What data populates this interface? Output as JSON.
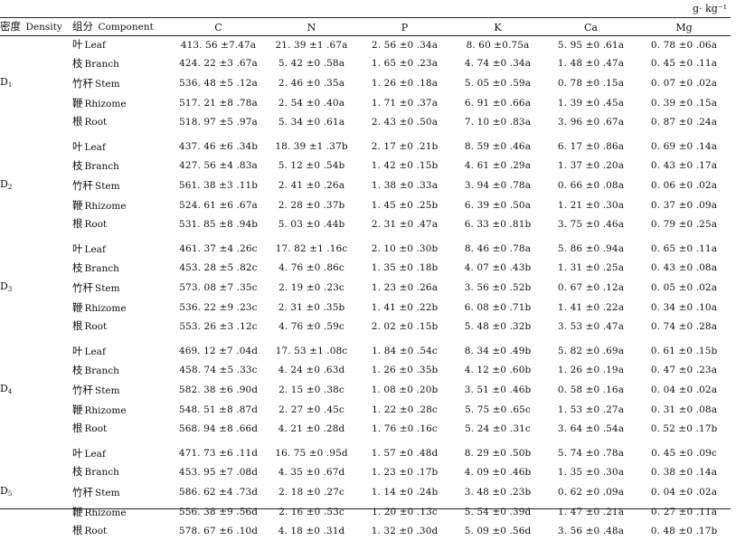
{
  "unit": "g· kg⁻¹",
  "header": {
    "density_cn": "密度",
    "density_en": "Density",
    "component_cn": "组分",
    "component_en": "Component",
    "columns": [
      "C",
      "N",
      "P",
      "K",
      "Ca",
      "Mg"
    ]
  },
  "groups": [
    {
      "label": "D1",
      "label_main": "D",
      "label_sub": "1",
      "rows": [
        {
          "cn": "叶",
          "en": "Leaf",
          "values": [
            "413. 56 ±7.47a",
            "21. 39 ±1 .67a",
            "2. 56 ±0 .34a",
            "8. 60 ±0.75a",
            "5. 95 ±0 .61a",
            "0. 78 ±0 .06a"
          ]
        },
        {
          "cn": "枝",
          "en": "Branch",
          "values": [
            "424. 22 ±3 .67a",
            "5. 42 ±0 .58a",
            "1. 65 ±0 .23a",
            "4. 74 ±0 .34a",
            "1. 48 ±0 .47a",
            "0. 45 ±0 .11a"
          ]
        },
        {
          "cn": "竹秆",
          "en": "Stem",
          "values": [
            "536. 48 ±5 .12a",
            "2. 46 ±0 .35a",
            "1. 26 ±0 .18a",
            "5. 05 ±0 .59a",
            "0. 78 ±0 .15a",
            "0. 07 ±0 .02a"
          ]
        },
        {
          "cn": "鞭",
          "en": "Rhizome",
          "values": [
            "517. 21 ±8 .78a",
            "2. 54 ±0 .40a",
            "1. 71 ±0 .37a",
            "6. 91 ±0 .66a",
            "1. 39 ±0 .45a",
            "0. 39 ±0 .15a"
          ]
        },
        {
          "cn": "根",
          "en": "Root",
          "values": [
            "518. 97 ±5 .97a",
            "5. 34 ±0 .61a",
            "2. 43 ±0 .50a",
            "7. 10 ±0 .83a",
            "3. 96 ±0 .67a",
            "0. 87 ±0 .24a"
          ]
        }
      ]
    },
    {
      "label": "D2",
      "label_main": "D",
      "label_sub": "2",
      "rows": [
        {
          "cn": "叶",
          "en": "Leaf",
          "values": [
            "437. 46 ±6 .34b",
            "18. 39 ±1 .37b",
            "2. 17 ±0 .21b",
            "8. 59 ±0 .46a",
            "6. 17 ±0 .86a",
            "0. 69 ±0 .14a"
          ]
        },
        {
          "cn": "枝",
          "en": "Branch",
          "values": [
            "427. 56 ±4 .83a",
            "5. 12 ±0 .54b",
            "1. 42 ±0 .15b",
            "4. 61 ±0 .29a",
            "1. 37 ±0 .20a",
            "0. 43 ±0 .17a"
          ]
        },
        {
          "cn": "竹秆",
          "en": "Stem",
          "values": [
            "561. 38 ±3 .11b",
            "2. 41 ±0 .26a",
            "1. 38 ±0 .33a",
            "3. 94 ±0 .78a",
            "0. 66 ±0 .08a",
            "0. 06 ±0 .02a"
          ]
        },
        {
          "cn": "鞭",
          "en": "Rhizome",
          "values": [
            "524. 61 ±6 .67a",
            "2. 28 ±0 .37b",
            "1. 45 ±0 .25b",
            "6. 39 ±0 .50a",
            "1. 21 ±0 .30a",
            "0. 37 ±0 .09a"
          ]
        },
        {
          "cn": "根",
          "en": "Root",
          "values": [
            "531. 85 ±8 .94b",
            "5. 03 ±0 .44b",
            "2. 31 ±0 .47a",
            "6. 33 ±0 .81b",
            "3. 75 ±0 .46a",
            "0. 79 ±0 .25a"
          ]
        }
      ]
    },
    {
      "label": "D3",
      "label_main": "D",
      "label_sub": "3",
      "rows": [
        {
          "cn": "叶",
          "en": "Leaf",
          "values": [
            "461. 37 ±4 .26c",
            "17. 82 ±1 .16c",
            "2. 10 ±0 .30b",
            "8. 46 ±0 .78a",
            "5. 86 ±0 .94a",
            "0. 65 ±0 .11a"
          ]
        },
        {
          "cn": "枝",
          "en": "Branch",
          "values": [
            "453. 28 ±5 .82c",
            "4. 76 ±0 .86c",
            "1. 35 ±0 .18b",
            "4. 07 ±0 .43b",
            "1. 31 ±0 .25a",
            "0. 43 ±0 .08a"
          ]
        },
        {
          "cn": "竹秆",
          "en": "Stem",
          "values": [
            "573. 08 ±7 .35c",
            "2. 19 ±0 .23c",
            "1. 23 ±0 .26a",
            "3. 56 ±0 .52b",
            "0. 67 ±0 .12a",
            "0. 05 ±0 .02a"
          ]
        },
        {
          "cn": "鞭",
          "en": "Rhizome",
          "values": [
            "536. 22 ±9 .23c",
            "2. 31 ±0 .35b",
            "1. 41 ±0 .22b",
            "6. 08 ±0 .71b",
            "1. 41 ±0 .22a",
            "0. 34 ±0 .10a"
          ]
        },
        {
          "cn": "根",
          "en": "Root",
          "values": [
            "553. 26 ±3 .12c",
            "4. 76 ±0 .59c",
            "2. 02 ±0 .15b",
            "5. 48 ±0 .32b",
            "3. 53 ±0 .47a",
            "0. 74 ±0 .28a"
          ]
        }
      ]
    },
    {
      "label": "D4",
      "label_main": "D",
      "label_sub": "4",
      "rows": [
        {
          "cn": "叶",
          "en": "Leaf",
          "values": [
            "469. 12 ±7 .04d",
            "17. 53 ±1 .08c",
            "1. 84 ±0 .54c",
            "8. 34 ±0 .49b",
            "5. 82 ±0 .69a",
            "0. 61 ±0 .15b"
          ]
        },
        {
          "cn": "枝",
          "en": "Branch",
          "values": [
            "458. 74 ±5 .33c",
            "4. 24 ±0 .63d",
            "1. 26 ±0 .35b",
            "4. 12 ±0 .60b",
            "1. 26 ±0 .19a",
            "0. 47 ±0 .23a"
          ]
        },
        {
          "cn": "竹秆",
          "en": "Stem",
          "values": [
            "582. 38 ±6 .90d",
            "2. 15 ±0 .38c",
            "1. 08 ±0 .20b",
            "3. 51 ±0 .46b",
            "0. 58 ±0 .16a",
            "0. 04 ±0 .02a"
          ]
        },
        {
          "cn": "鞭",
          "en": "Rhizome",
          "values": [
            "548. 51 ±8 .87d",
            "2. 27 ±0 .45c",
            "1. 22 ±0 .28c",
            "5. 75 ±0 .65c",
            "1. 53 ±0 .27a",
            "0. 31 ±0 .08a"
          ]
        },
        {
          "cn": "根",
          "en": "Root",
          "values": [
            "568. 94 ±8 .66d",
            "4. 21 ±0 .28d",
            "1. 76 ±0 .16c",
            "5. 24 ±0 .31c",
            "3. 64 ±0 .54a",
            "0. 52 ±0 .17b"
          ]
        }
      ]
    },
    {
      "label": "D5",
      "label_main": "D",
      "label_sub": "5",
      "rows": [
        {
          "cn": "叶",
          "en": "Leaf",
          "values": [
            "471. 73 ±6 .11d",
            "16. 75 ±0 .95d",
            "1. 57 ±0 .48d",
            "8. 29 ±0 .50b",
            "5. 74 ±0 .78a",
            "0. 45 ±0 .09c"
          ]
        },
        {
          "cn": "枝",
          "en": "Branch",
          "values": [
            "453. 95 ±7 .08d",
            "4. 35 ±0 .67d",
            "1. 23 ±0 .17b",
            "4. 09 ±0 .46b",
            "1. 35 ±0 .30a",
            "0. 38 ±0 .14a"
          ]
        },
        {
          "cn": "竹秆",
          "en": "Stem",
          "values": [
            "586. 62 ±4 .73d",
            "2. 18 ±0 .27c",
            "1. 14 ±0 .24b",
            "3. 48 ±0 .23b",
            "0. 62 ±0 .09a",
            "0. 04 ±0 .02a"
          ]
        },
        {
          "cn": "鞭",
          "en": "Rhizome",
          "values": [
            "556. 38 ±9 .56d",
            "2. 16 ±0 .53c",
            "1. 20 ±0 .13c",
            "5. 54 ±0 .39d",
            "1. 47 ±0 .21a",
            "0. 27 ±0 .11a"
          ]
        },
        {
          "cn": "根",
          "en": "Root",
          "values": [
            "578. 67 ±6 .10d",
            "4. 18 ±0 .31d",
            "1. 32 ±0 .30d",
            "5. 09 ±0 .56d",
            "3. 56 ±0 .48a",
            "0. 48 ±0 .17b"
          ]
        }
      ]
    }
  ]
}
